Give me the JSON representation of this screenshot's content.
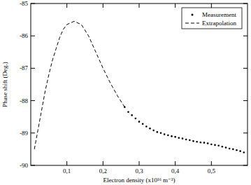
{
  "chart_data": {
    "type": "scatter",
    "x_label": "Electron density (x10¹⁶ m⁻³)",
    "y_label": "Phase shift (Deg.)",
    "xlim": [
      0,
      0.6
    ],
    "ylim": [
      -90,
      -85
    ],
    "xticks": [
      {
        "value": 0.1,
        "label": "0,1"
      },
      {
        "value": 0.2,
        "label": "0,2"
      },
      {
        "value": 0.3,
        "label": "0,3"
      },
      {
        "value": 0.4,
        "label": "0,4"
      },
      {
        "value": 0.5,
        "label": "0,5"
      }
    ],
    "yticks": [
      -90,
      -89,
      -88,
      -87,
      -86,
      -85
    ],
    "legend": "upper right",
    "grid": false,
    "series": [
      {
        "name": "Measurement",
        "type": "scatter",
        "marker": "circle",
        "color": "#000000",
        "x": [
          0.26,
          0.27,
          0.28,
          0.29,
          0.3,
          0.31,
          0.32,
          0.33,
          0.34,
          0.35,
          0.36,
          0.37,
          0.38,
          0.39,
          0.4,
          0.41,
          0.42,
          0.43,
          0.44,
          0.45,
          0.46,
          0.47,
          0.48,
          0.49,
          0.5,
          0.51,
          0.52,
          0.53,
          0.54,
          0.55,
          0.56,
          0.57,
          0.58,
          0.59
        ],
        "values": [
          -88.2,
          -88.35,
          -88.45,
          -88.55,
          -88.65,
          -88.72,
          -88.8,
          -88.86,
          -88.92,
          -88.97,
          -89.0,
          -89.04,
          -89.07,
          -89.1,
          -89.12,
          -89.15,
          -89.17,
          -89.2,
          -89.22,
          -89.25,
          -89.27,
          -89.29,
          -89.3,
          -89.32,
          -89.35,
          -89.37,
          -89.39,
          -89.42,
          -89.45,
          -89.48,
          -89.5,
          -89.53,
          -89.56,
          -89.6
        ]
      },
      {
        "name": "Extrapolation",
        "type": "line",
        "line_style": "dashed",
        "color": "#000000",
        "x": [
          0.01,
          0.02,
          0.03,
          0.04,
          0.05,
          0.06,
          0.07,
          0.08,
          0.09,
          0.1,
          0.12,
          0.14,
          0.16,
          0.18,
          0.2,
          0.22,
          0.24,
          0.26
        ],
        "values": [
          -89.5,
          -88.9,
          -88.3,
          -87.7,
          -87.2,
          -86.75,
          -86.4,
          -86.05,
          -85.8,
          -85.65,
          -85.55,
          -85.65,
          -86.0,
          -86.5,
          -87.0,
          -87.45,
          -87.85,
          -88.2
        ]
      }
    ]
  }
}
